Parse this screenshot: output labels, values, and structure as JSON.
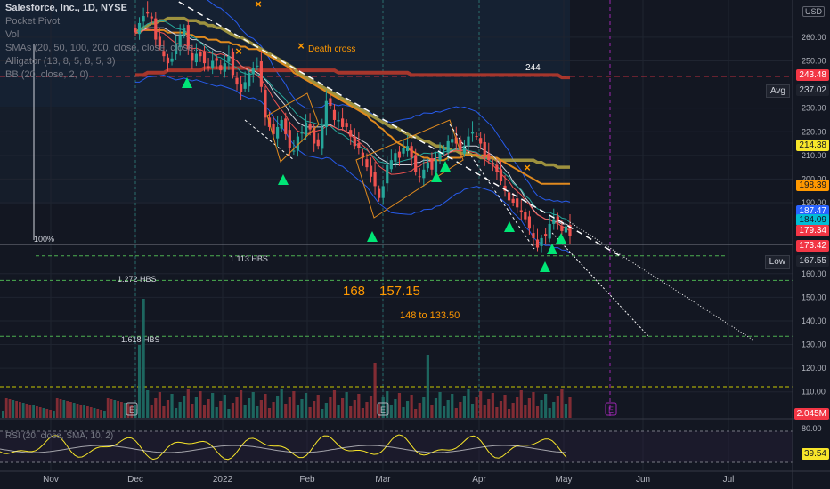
{
  "header": {
    "title": "Salesforce, Inc., 1D, NYSE",
    "indicators": [
      "Pocket Pivot",
      "Vol",
      "SMAs (20, 50, 100, 200, close, close, close...",
      "Alligator (13, 8, 5, 8, 5, 3)",
      "BB (20, close, 2, 0)"
    ],
    "currency": "USD"
  },
  "annotations": {
    "death_cross": "Death cross",
    "level_244": "244",
    "pct100": "100%",
    "hbs1113": "1.113 HBS",
    "hbs1272": "1.272 HBS",
    "hbs1618": "1.618 HBS",
    "target168": "168",
    "target157": "157.15",
    "target_range": "148 to  133.50",
    "earnings": "E",
    "rsi_label": "RSI (20, close, SMA, 10, 2)"
  },
  "price_axis": {
    "ticks": [
      "260.00",
      "250.00",
      "230.00",
      "220.00",
      "210.00",
      "200.00",
      "190.00",
      "160.00",
      "150.00",
      "140.00",
      "130.00",
      "120.00",
      "110.00"
    ],
    "tags": [
      {
        "label": "243.48",
        "bg": "#f23645",
        "fg": "#ffffff"
      },
      {
        "label": "237.02",
        "bg": "#1e222d",
        "fg": "#d1d4dc"
      },
      {
        "label": "214.38",
        "bg": "#f7e52a",
        "fg": "#131722"
      },
      {
        "label": "198.39",
        "bg": "#ff9800",
        "fg": "#131722"
      },
      {
        "label": "187.47",
        "bg": "#2962ff",
        "fg": "#ffffff"
      },
      {
        "label": "184.09",
        "bg": "#00bcd4",
        "fg": "#131722"
      },
      {
        "label": "179.34",
        "bg": "#f23645",
        "fg": "#ffffff"
      },
      {
        "label": "173.42",
        "bg": "#f23645",
        "fg": "#ffffff"
      },
      {
        "label": "167.55",
        "bg": "#1e222d",
        "fg": "#d1d4dc"
      },
      {
        "label": "2.045M",
        "bg": "#f23645",
        "fg": "#ffffff"
      }
    ],
    "avg_label": "Avg",
    "low_label": "Low"
  },
  "rsi_axis": {
    "ticks": [
      "80.00"
    ],
    "tag": {
      "label": "39.54",
      "bg": "#f7e52a",
      "fg": "#131722"
    }
  },
  "time_axis": [
    "Nov",
    "Dec",
    "2022",
    "Feb",
    "Mar",
    "Apr",
    "May",
    "Jun",
    "Jul"
  ],
  "chart_data": {
    "type": "candlestick",
    "title": "Salesforce, Inc., 1D, NYSE",
    "ylim": [
      102,
      272
    ],
    "x_labels": [
      "Nov",
      "Dec",
      "2022",
      "Feb",
      "Mar",
      "Apr",
      "May",
      "Jun",
      "Jul"
    ],
    "close": [
      262,
      266,
      269,
      270,
      268,
      259,
      256,
      252,
      249,
      251,
      257,
      261,
      264,
      255,
      250,
      253,
      252,
      249,
      247,
      250,
      250,
      246,
      249,
      252,
      244,
      240,
      237,
      241,
      245,
      247,
      248,
      239,
      226,
      222,
      219,
      222,
      225,
      219,
      213,
      212,
      218,
      220,
      224,
      221,
      215,
      214,
      222,
      233,
      231,
      225,
      225,
      222,
      222,
      218,
      214,
      213,
      209,
      205,
      201,
      197,
      192,
      197,
      206,
      208,
      211,
      209,
      213,
      214,
      209,
      203,
      201,
      204,
      207,
      204,
      208,
      211,
      213,
      216,
      217,
      215,
      212,
      214,
      218,
      220,
      218,
      215,
      209,
      208,
      206,
      203,
      199,
      195,
      191,
      190,
      188,
      186,
      183,
      179,
      175,
      171,
      175,
      176,
      181,
      183,
      182,
      178,
      180,
      176
    ],
    "sma_20": [
      262,
      262,
      263,
      264,
      264,
      264,
      264,
      264,
      263,
      262,
      261,
      261,
      261,
      260,
      259,
      259,
      258,
      257,
      256,
      255,
      254,
      254,
      253,
      252,
      251,
      250,
      248,
      247,
      246,
      246,
      245,
      244,
      242,
      240,
      237,
      235,
      233,
      231,
      228,
      226,
      224,
      223,
      222,
      222,
      222,
      222,
      222,
      223,
      223,
      222,
      221,
      221,
      220,
      219,
      218,
      217,
      216,
      215,
      213,
      211,
      209,
      208,
      207,
      206,
      206,
      206,
      206,
      206,
      206,
      207,
      207,
      208,
      208,
      208,
      209,
      209,
      210,
      211,
      212,
      213,
      213,
      214,
      214,
      214,
      214,
      213,
      212,
      211,
      210,
      208,
      206,
      204,
      202,
      199,
      197,
      195,
      192,
      190,
      187,
      185,
      184,
      183,
      183,
      182,
      182,
      181,
      181,
      180
    ],
    "sma_50": [
      262,
      262,
      263,
      263,
      263,
      263,
      263,
      263,
      262,
      262,
      262,
      262,
      262,
      261,
      261,
      260,
      260,
      260,
      259,
      259,
      259,
      258,
      258,
      258,
      257,
      257,
      256,
      256,
      255,
      255,
      255,
      254,
      253,
      252,
      251,
      250,
      249,
      248,
      247,
      245,
      244,
      243,
      242,
      241,
      240,
      239,
      238,
      237,
      236,
      235,
      234,
      233,
      232,
      231,
      230,
      229,
      228,
      227,
      225,
      224,
      222,
      221,
      219,
      218,
      216,
      215,
      214,
      213,
      212,
      211,
      210,
      209,
      209,
      208,
      208,
      208,
      208,
      209,
      209,
      209,
      209,
      210,
      210,
      210,
      210,
      210,
      210,
      210,
      209,
      209,
      208,
      207,
      206,
      205,
      204,
      203,
      202,
      201,
      200,
      199,
      198,
      198,
      198,
      198,
      198,
      198,
      198,
      198
    ],
    "sma_100": [
      262,
      263,
      264,
      265,
      266,
      266,
      267,
      267,
      268,
      268,
      268,
      268,
      268,
      267,
      267,
      267,
      266,
      266,
      265,
      265,
      264,
      264,
      263,
      262,
      261,
      260,
      260,
      259,
      258,
      257,
      256,
      255,
      254,
      253,
      252,
      251,
      250,
      249,
      248,
      247,
      245,
      244,
      243,
      242,
      241,
      240,
      239,
      238,
      237,
      236,
      235,
      234,
      233,
      232,
      231,
      230,
      229,
      228,
      227,
      226,
      225,
      224,
      223,
      222,
      222,
      221,
      220,
      219,
      218,
      218,
      217,
      216,
      216,
      215,
      214,
      214,
      213,
      213,
      212,
      212,
      211,
      211,
      211,
      210,
      210,
      209,
      209,
      209,
      209,
      208,
      208,
      208,
      208,
      208,
      208,
      208,
      208,
      208,
      208,
      207,
      207,
      206,
      206,
      206,
      205,
      205,
      205,
      205
    ],
    "sma_200": [
      244,
      244,
      244,
      245,
      245,
      245,
      245,
      245,
      246,
      246,
      246,
      246,
      246,
      246,
      246,
      246,
      246,
      247,
      247,
      247,
      247,
      247,
      247,
      247,
      247,
      247,
      247,
      247,
      247,
      246,
      246,
      246,
      246,
      246,
      246,
      246,
      246,
      246,
      246,
      246,
      246,
      246,
      246,
      246,
      246,
      246,
      246,
      246,
      246,
      246,
      245,
      245,
      245,
      245,
      245,
      245,
      245,
      245,
      245,
      245,
      245,
      245,
      245,
      245,
      245,
      245,
      245,
      245,
      244,
      244,
      244,
      244,
      244,
      244,
      244,
      244,
      244,
      244,
      244,
      244,
      244,
      244,
      244,
      244,
      244,
      244,
      244,
      244,
      244,
      244,
      244,
      244,
      244,
      244,
      244,
      244,
      244,
      244,
      244,
      244,
      244,
      244,
      244,
      244,
      244,
      243,
      243,
      243
    ],
    "horizontal_levels": [
      {
        "label": "244",
        "value": 243.48
      },
      {
        "label": "1.113 HBS",
        "value": 167.55
      },
      {
        "label": "1.272 HBS",
        "value": 157.15
      },
      {
        "label": "1.618 HBS",
        "value": 133.5
      }
    ],
    "volume_last": "2.045M",
    "rsi": {
      "period": 20,
      "last": 39.54,
      "levels": [
        70,
        30
      ]
    }
  }
}
